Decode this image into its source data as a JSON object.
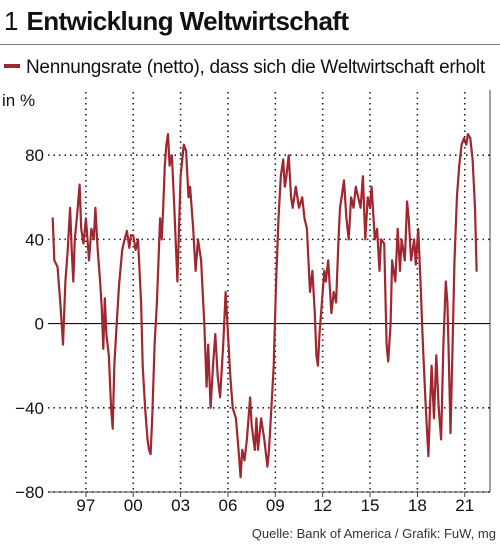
{
  "title": {
    "number": "1",
    "text": "Entwicklung Weltwirtschaft"
  },
  "legend": {
    "label": "Nennungsrate (netto), dass sich die Weltwirtschaft erholt",
    "color": "#a0262f"
  },
  "source": "Quelle: Bank of America / Grafik: FuW, mg",
  "chart_data": {
    "type": "line",
    "title": "Entwicklung Weltwirtschaft",
    "xlabel": "",
    "ylabel": "in %",
    "xlim": [
      1994.6,
      2022.6
    ],
    "ylim": [
      -80,
      110
    ],
    "yticks": [
      80,
      40,
      0,
      -40,
      -80
    ],
    "xticks": [
      1997,
      2000,
      2003,
      2006,
      2009,
      2012,
      2015,
      2018,
      2021
    ],
    "xtick_labels": [
      "97",
      "00",
      "03",
      "06",
      "09",
      "12",
      "15",
      "18",
      "21"
    ],
    "grid": "dotted vertical lines at x ticks, dotted horizontal lines at y ticks, solid zero line",
    "series": [
      {
        "name": "Nennungsrate (netto), dass sich die Weltwirtschaft erholt",
        "color": "#a0262f",
        "points": [
          [
            1994.9,
            50
          ],
          [
            1995.0,
            30
          ],
          [
            1995.2,
            27
          ],
          [
            1995.4,
            8
          ],
          [
            1995.55,
            -10
          ],
          [
            1995.7,
            20
          ],
          [
            1995.85,
            35
          ],
          [
            1996.0,
            55
          ],
          [
            1996.1,
            35
          ],
          [
            1996.2,
            20
          ],
          [
            1996.3,
            40
          ],
          [
            1996.45,
            52
          ],
          [
            1996.6,
            66
          ],
          [
            1996.7,
            45
          ],
          [
            1996.85,
            38
          ],
          [
            1997.0,
            50
          ],
          [
            1997.1,
            40
          ],
          [
            1997.2,
            30
          ],
          [
            1997.35,
            45
          ],
          [
            1997.5,
            40
          ],
          [
            1997.6,
            55
          ],
          [
            1997.75,
            35
          ],
          [
            1997.9,
            20
          ],
          [
            1998.0,
            8
          ],
          [
            1998.1,
            -12
          ],
          [
            1998.2,
            12
          ],
          [
            1998.3,
            -5
          ],
          [
            1998.45,
            -15
          ],
          [
            1998.6,
            -40
          ],
          [
            1998.7,
            -50
          ],
          [
            1998.8,
            -20
          ],
          [
            1998.95,
            0
          ],
          [
            1999.1,
            18
          ],
          [
            1999.3,
            35
          ],
          [
            1999.45,
            40
          ],
          [
            1999.6,
            44
          ],
          [
            1999.75,
            36
          ],
          [
            1999.85,
            42
          ],
          [
            2000.0,
            42
          ],
          [
            2000.15,
            35
          ],
          [
            2000.3,
            40
          ],
          [
            2000.5,
            10
          ],
          [
            2000.6,
            -20
          ],
          [
            2000.75,
            -40
          ],
          [
            2000.9,
            -55
          ],
          [
            2001.0,
            -60
          ],
          [
            2001.1,
            -62
          ],
          [
            2001.2,
            -45
          ],
          [
            2001.35,
            -10
          ],
          [
            2001.5,
            10
          ],
          [
            2001.6,
            30
          ],
          [
            2001.7,
            50
          ],
          [
            2001.8,
            40
          ],
          [
            2001.9,
            55
          ],
          [
            2002.0,
            75
          ],
          [
            2002.1,
            85
          ],
          [
            2002.2,
            90
          ],
          [
            2002.3,
            75
          ],
          [
            2002.45,
            80
          ],
          [
            2002.6,
            55
          ],
          [
            2002.8,
            20
          ],
          [
            2002.9,
            45
          ],
          [
            2003.0,
            70
          ],
          [
            2003.2,
            85
          ],
          [
            2003.35,
            82
          ],
          [
            2003.5,
            60
          ],
          [
            2003.6,
            65
          ],
          [
            2003.8,
            45
          ],
          [
            2003.95,
            25
          ],
          [
            2004.1,
            40
          ],
          [
            2004.3,
            30
          ],
          [
            2004.5,
            0
          ],
          [
            2004.65,
            -30
          ],
          [
            2004.75,
            -10
          ],
          [
            2004.9,
            -40
          ],
          [
            2005.05,
            -20
          ],
          [
            2005.2,
            -5
          ],
          [
            2005.35,
            -25
          ],
          [
            2005.5,
            -35
          ],
          [
            2005.7,
            -10
          ],
          [
            2005.85,
            15
          ],
          [
            2006.0,
            -5
          ],
          [
            2006.15,
            -25
          ],
          [
            2006.3,
            -40
          ],
          [
            2006.5,
            -45
          ],
          [
            2006.65,
            -58
          ],
          [
            2006.8,
            -73
          ],
          [
            2006.9,
            -60
          ],
          [
            2007.05,
            -65
          ],
          [
            2007.2,
            -55
          ],
          [
            2007.4,
            -35
          ],
          [
            2007.5,
            -48
          ],
          [
            2007.7,
            -60
          ],
          [
            2007.8,
            -45
          ],
          [
            2007.9,
            -60
          ],
          [
            2008.1,
            -45
          ],
          [
            2008.3,
            -55
          ],
          [
            2008.5,
            -68
          ],
          [
            2008.6,
            -60
          ],
          [
            2008.75,
            -40
          ],
          [
            2008.9,
            -20
          ],
          [
            2009.05,
            20
          ],
          [
            2009.2,
            50
          ],
          [
            2009.35,
            70
          ],
          [
            2009.5,
            78
          ],
          [
            2009.6,
            65
          ],
          [
            2009.7,
            70
          ],
          [
            2009.85,
            80
          ],
          [
            2010.0,
            60
          ],
          [
            2010.1,
            55
          ],
          [
            2010.3,
            65
          ],
          [
            2010.5,
            55
          ],
          [
            2010.7,
            60
          ],
          [
            2010.85,
            50
          ],
          [
            2011.0,
            45
          ],
          [
            2011.2,
            15
          ],
          [
            2011.35,
            25
          ],
          [
            2011.5,
            5
          ],
          [
            2011.6,
            -15
          ],
          [
            2011.7,
            -20
          ],
          [
            2011.8,
            -5
          ],
          [
            2011.95,
            10
          ],
          [
            2012.1,
            25
          ],
          [
            2012.2,
            20
          ],
          [
            2012.35,
            30
          ],
          [
            2012.55,
            5
          ],
          [
            2012.7,
            15
          ],
          [
            2012.85,
            10
          ],
          [
            2013.0,
            40
          ],
          [
            2013.1,
            55
          ],
          [
            2013.2,
            60
          ],
          [
            2013.35,
            68
          ],
          [
            2013.5,
            50
          ],
          [
            2013.65,
            40
          ],
          [
            2013.8,
            60
          ],
          [
            2013.95,
            55
          ],
          [
            2014.1,
            65
          ],
          [
            2014.25,
            60
          ],
          [
            2014.4,
            55
          ],
          [
            2014.55,
            70
          ],
          [
            2014.7,
            40
          ],
          [
            2014.85,
            60
          ],
          [
            2015.0,
            55
          ],
          [
            2015.1,
            65
          ],
          [
            2015.3,
            40
          ],
          [
            2015.45,
            45
          ],
          [
            2015.6,
            25
          ],
          [
            2015.7,
            40
          ],
          [
            2015.9,
            38
          ],
          [
            2016.05,
            -10
          ],
          [
            2016.15,
            -18
          ],
          [
            2016.3,
            0
          ],
          [
            2016.4,
            30
          ],
          [
            2016.6,
            20
          ],
          [
            2016.75,
            45
          ],
          [
            2016.9,
            25
          ],
          [
            2017.0,
            40
          ],
          [
            2017.2,
            30
          ],
          [
            2017.35,
            58
          ],
          [
            2017.45,
            50
          ],
          [
            2017.6,
            30
          ],
          [
            2017.8,
            40
          ],
          [
            2017.9,
            28
          ],
          [
            2018.05,
            45
          ],
          [
            2018.2,
            20
          ],
          [
            2018.35,
            -10
          ],
          [
            2018.5,
            -35
          ],
          [
            2018.6,
            -50
          ],
          [
            2018.7,
            -63
          ],
          [
            2018.8,
            -40
          ],
          [
            2018.9,
            -20
          ],
          [
            2019.05,
            -45
          ],
          [
            2019.2,
            -15
          ],
          [
            2019.35,
            -40
          ],
          [
            2019.5,
            -55
          ],
          [
            2019.65,
            -10
          ],
          [
            2019.8,
            20
          ],
          [
            2019.9,
            10
          ],
          [
            2020.0,
            -20
          ],
          [
            2020.1,
            -52
          ],
          [
            2020.2,
            -20
          ],
          [
            2020.35,
            30
          ],
          [
            2020.5,
            60
          ],
          [
            2020.65,
            75
          ],
          [
            2020.8,
            85
          ],
          [
            2020.95,
            88
          ],
          [
            2021.1,
            85
          ],
          [
            2021.2,
            90
          ],
          [
            2021.35,
            88
          ],
          [
            2021.5,
            78
          ],
          [
            2021.65,
            55
          ],
          [
            2021.75,
            25
          ]
        ]
      }
    ]
  }
}
